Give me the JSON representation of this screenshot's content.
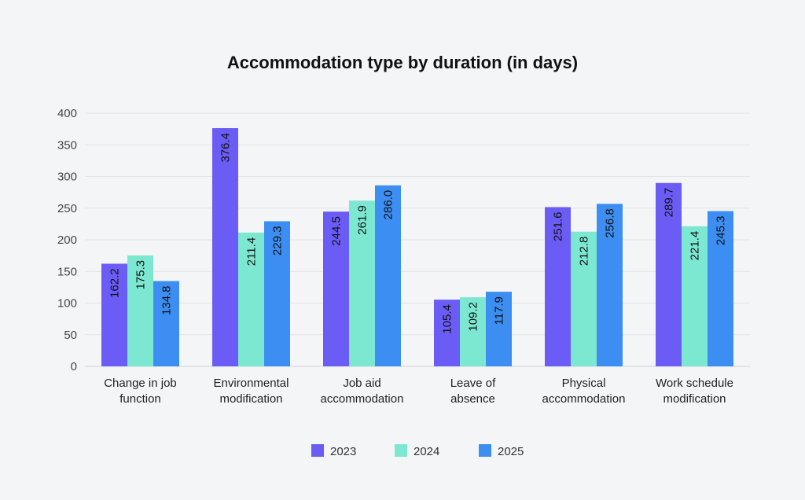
{
  "chart_data": {
    "type": "bar",
    "title": "Accommodation type by duration (in days)",
    "xlabel": "",
    "ylabel": "",
    "ylim": [
      0,
      400
    ],
    "yticks": [
      0,
      50,
      100,
      150,
      200,
      250,
      300,
      350,
      400
    ],
    "grid": true,
    "legend_position": "bottom-center",
    "categories": [
      [
        "Change in job",
        "function"
      ],
      [
        "Environmental",
        "modification"
      ],
      [
        "Job aid",
        "accommodation"
      ],
      [
        "Leave of",
        "absence"
      ],
      [
        "Physical",
        "accommodation"
      ],
      [
        "Work schedule",
        "modification"
      ]
    ],
    "series": [
      {
        "name": "2023",
        "color": "#6b5cf6",
        "values": [
          162.2,
          376.4,
          244.5,
          105.4,
          251.6,
          289.7
        ],
        "labels": [
          "162.2",
          "376.4",
          "244.5",
          "105.4",
          "251.6",
          "289.7"
        ]
      },
      {
        "name": "2024",
        "color": "#7de8d2",
        "values": [
          175.3,
          211.4,
          261.9,
          109.2,
          212.8,
          221.4
        ],
        "labels": [
          "175.3",
          "211.4",
          "261.9",
          "109.2",
          "212.8",
          "221.4"
        ]
      },
      {
        "name": "2025",
        "color": "#3d8ef2",
        "values": [
          134.8,
          229.3,
          286.0,
          117.9,
          256.8,
          245.3
        ],
        "labels": [
          "134.8",
          "229.3",
          "286.0",
          "117.9",
          "256.8",
          "245.3"
        ]
      }
    ]
  }
}
